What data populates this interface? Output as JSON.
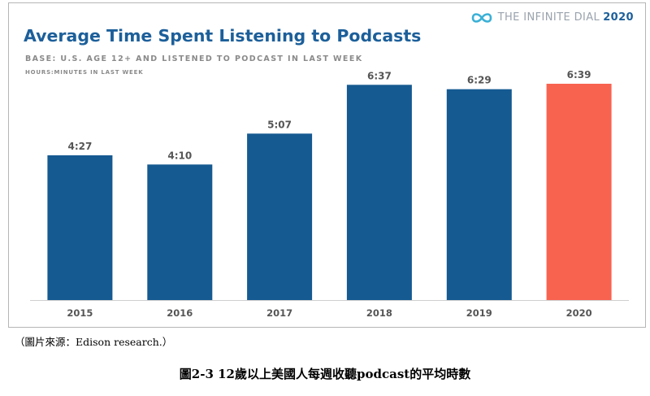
{
  "brand": {
    "text": "THE INFINITE DIAL",
    "year": "2020",
    "icon": "infinity-icon"
  },
  "source_note": "（圖片來源：Edison research.）",
  "caption": "圖2-3  12歲以上美國人每週收聽podcast的平均時數",
  "colors": {
    "bar": "#155a91",
    "highlight": "#f86350",
    "title": "#1c5f9a"
  },
  "chart_data": {
    "type": "bar",
    "title": "Average Time Spent Listening to Podcasts",
    "subtitle": "BASE: U.S. AGE 12+ AND LISTENED TO PODCAST IN LAST WEEK",
    "ylabel": "HOURS:MINUTES IN LAST WEEK",
    "xlabel": "",
    "categories": [
      "2015",
      "2016",
      "2017",
      "2018",
      "2019",
      "2020"
    ],
    "labels": [
      "4:27",
      "4:10",
      "5:07",
      "6:37",
      "6:29",
      "6:39"
    ],
    "values": [
      267,
      250,
      307,
      397,
      389,
      399
    ],
    "value_unit": "minutes",
    "ylim": [
      0,
      480
    ],
    "highlight_index": 5,
    "grid": false
  }
}
